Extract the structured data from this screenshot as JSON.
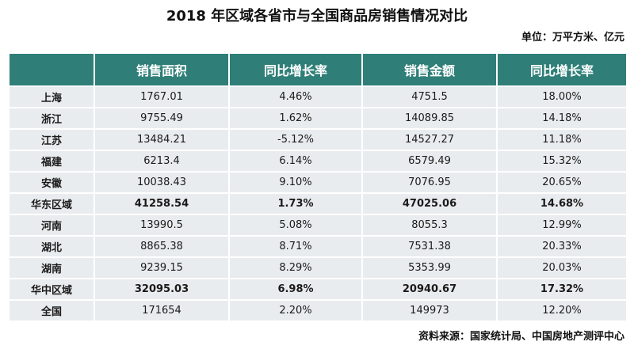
{
  "title": "2018 年区域各省市与全国商品房销售情况对比",
  "unit": "单位：万平方米、亿元",
  "source": "资料来源：国家统计局、中国房地产测评中心",
  "columns": [
    "",
    "销售面积",
    "同比增长率",
    "销售金额",
    "同比增长率"
  ],
  "rows": [
    {
      "region": "上海",
      "area": "1767.01",
      "area_yoy": "4.46%",
      "amount": "4751.5",
      "amount_yoy": "18.00%",
      "subtotal": false
    },
    {
      "region": "浙江",
      "area": "9755.49",
      "area_yoy": "1.62%",
      "amount": "14089.85",
      "amount_yoy": "14.18%",
      "subtotal": false
    },
    {
      "region": "江苏",
      "area": "13484.21",
      "area_yoy": "-5.12%",
      "amount": "14527.27",
      "amount_yoy": "11.18%",
      "subtotal": false
    },
    {
      "region": "福建",
      "area": "6213.4",
      "area_yoy": "6.14%",
      "amount": "6579.49",
      "amount_yoy": "15.32%",
      "subtotal": false
    },
    {
      "region": "安徽",
      "area": "10038.43",
      "area_yoy": "9.10%",
      "amount": "7076.95",
      "amount_yoy": "20.65%",
      "subtotal": false
    },
    {
      "region": "华东区域",
      "area": "41258.54",
      "area_yoy": "1.73%",
      "amount": "47025.06",
      "amount_yoy": "14.68%",
      "subtotal": true
    },
    {
      "region": "河南",
      "area": "13990.5",
      "area_yoy": "5.08%",
      "amount": "8055.3",
      "amount_yoy": "12.99%",
      "subtotal": false
    },
    {
      "region": "湖北",
      "area": "8865.38",
      "area_yoy": "8.71%",
      "amount": "7531.38",
      "amount_yoy": "20.33%",
      "subtotal": false
    },
    {
      "region": "湖南",
      "area": "9239.15",
      "area_yoy": "8.29%",
      "amount": "5353.99",
      "amount_yoy": "20.03%",
      "subtotal": false
    },
    {
      "region": "华中区域",
      "area": "32095.03",
      "area_yoy": "6.98%",
      "amount": "20940.67",
      "amount_yoy": "17.32%",
      "subtotal": true
    },
    {
      "region": "全国",
      "area": "171654",
      "area_yoy": "2.20%",
      "amount": "149973",
      "amount_yoy": "12.20%",
      "subtotal": false
    }
  ]
}
